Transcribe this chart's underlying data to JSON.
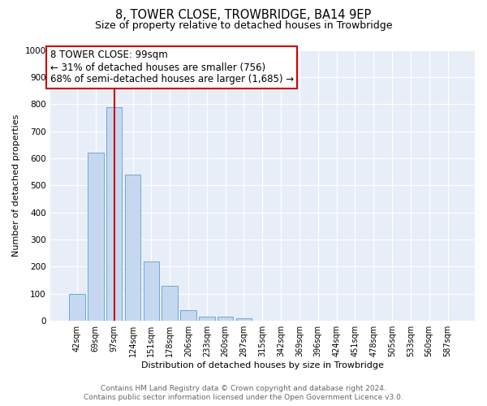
{
  "title": "8, TOWER CLOSE, TROWBRIDGE, BA14 9EP",
  "subtitle": "Size of property relative to detached houses in Trowbridge",
  "xlabel": "Distribution of detached houses by size in Trowbridge",
  "ylabel": "Number of detached properties",
  "footer_line1": "Contains HM Land Registry data © Crown copyright and database right 2024.",
  "footer_line2": "Contains public sector information licensed under the Open Government Licence v3.0.",
  "categories": [
    "42sqm",
    "69sqm",
    "97sqm",
    "124sqm",
    "151sqm",
    "178sqm",
    "206sqm",
    "233sqm",
    "260sqm",
    "287sqm",
    "315sqm",
    "342sqm",
    "369sqm",
    "396sqm",
    "424sqm",
    "451sqm",
    "478sqm",
    "505sqm",
    "533sqm",
    "560sqm",
    "587sqm"
  ],
  "values": [
    100,
    620,
    790,
    540,
    220,
    130,
    40,
    15,
    15,
    10,
    0,
    0,
    0,
    0,
    0,
    0,
    0,
    0,
    0,
    0,
    0
  ],
  "bar_color": "#c5d8f0",
  "bar_edge_color": "#6aaad4",
  "background_color": "#e8eef8",
  "grid_color": "#ffffff",
  "red_line_index": 2,
  "red_line_color": "#cc0000",
  "annotation_line1": "8 TOWER CLOSE: 99sqm",
  "annotation_line2": "← 31% of detached houses are smaller (756)",
  "annotation_line3": "68% of semi-detached houses are larger (1,685) →",
  "annotation_box_color": "#cc0000",
  "ylim": [
    0,
    1000
  ],
  "yticks": [
    0,
    100,
    200,
    300,
    400,
    500,
    600,
    700,
    800,
    900,
    1000
  ],
  "title_fontsize": 10.5,
  "subtitle_fontsize": 9,
  "annotation_fontsize": 8.5,
  "footer_fontsize": 6.5
}
